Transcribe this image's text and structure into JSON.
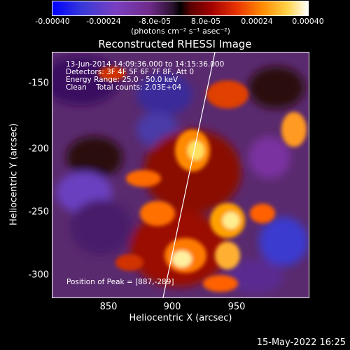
{
  "colorbar": {
    "tick_labels": [
      "-0.00040",
      "-0.00024",
      "-8.0e-05",
      "8.0e-05",
      "0.00024",
      "0.00040"
    ],
    "units": "(photons cm⁻² s⁻¹ asec⁻²)"
  },
  "title": "Reconstructed RHESSI Image",
  "info_lines": [
    "13-Jun-2014 14:09:36.000 to 14:15:36.000",
    "Detectors: 3F 4F 5F 6F 7F 8F, Att 0",
    "Energy Range: 25.0 - 50.0 keV",
    "Clean    Total counts: 2.03E+04"
  ],
  "peak_text": "Position of Peak = [887,-289]",
  "axes": {
    "ylabel": "Heliocentric Y (arcsec)",
    "xlabel": "Heliocentric X (arcsec)",
    "yticks": [
      "-150",
      "-200",
      "-250",
      "-300"
    ],
    "xticks": [
      "850",
      "900",
      "950"
    ]
  },
  "footer_date": "15-May-2022 16:25"
}
